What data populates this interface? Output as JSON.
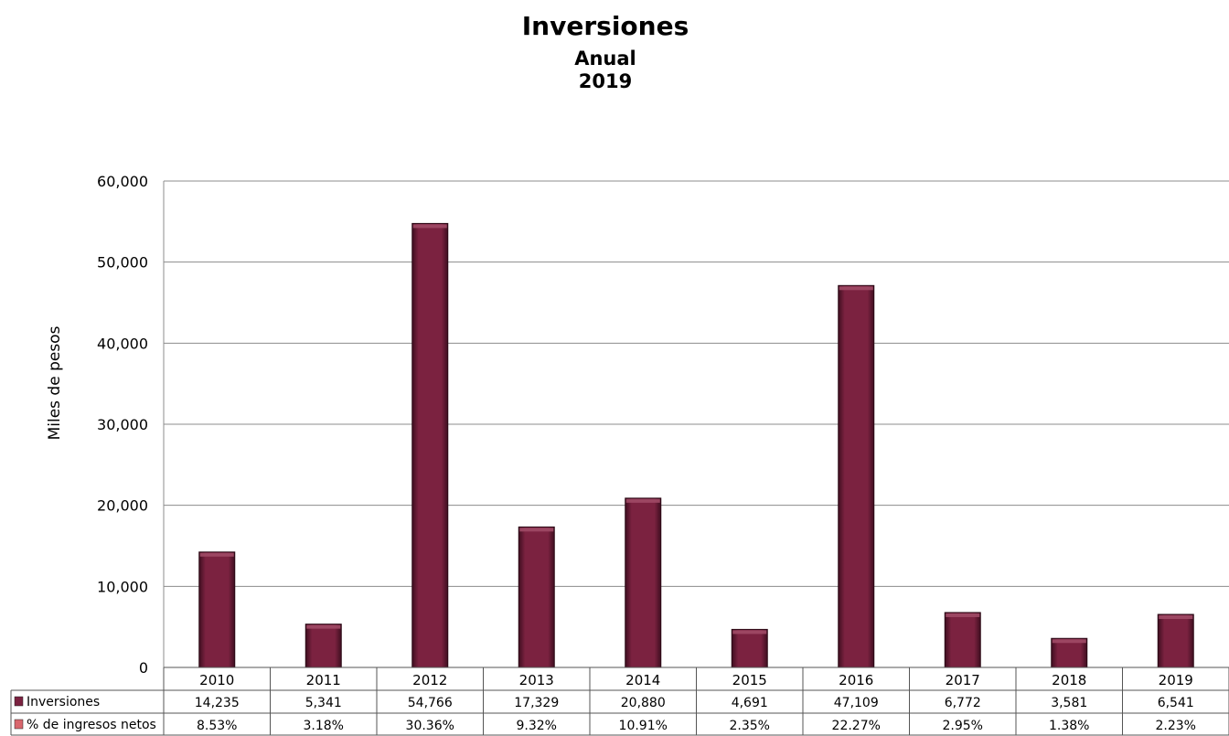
{
  "chart_data": {
    "type": "bar",
    "title": "Inversiones",
    "subtitle": "Anual",
    "subtitle2": "2019",
    "xlabel": "",
    "ylabel": "Miles de pesos",
    "ylim": [
      0,
      60000
    ],
    "yticks": [
      0,
      10000,
      20000,
      30000,
      40000,
      50000,
      60000
    ],
    "ytick_labels": [
      "0",
      "10,000",
      "20,000",
      "30,000",
      "40,000",
      "50,000",
      "60,000"
    ],
    "grid": true,
    "legend": "data-table-left",
    "categories": [
      "2010",
      "2011",
      "2012",
      "2013",
      "2014",
      "2015",
      "2016",
      "2017",
      "2018",
      "2019"
    ],
    "series": [
      {
        "name": "Inversiones",
        "color": "#7B2240",
        "values": [
          14235,
          5341,
          54766,
          17329,
          20880,
          4691,
          47109,
          6772,
          3581,
          6541
        ],
        "labels": [
          "14,235",
          "5,341",
          "54,766",
          "17,329",
          "20,880",
          "4,691",
          "47,109",
          "6,772",
          "3,581",
          "6,541"
        ]
      },
      {
        "name": "% de ingresos netos",
        "color": "#D9676E",
        "values": [
          8.53,
          3.18,
          30.36,
          9.32,
          10.91,
          2.35,
          22.27,
          2.95,
          1.38,
          2.23
        ],
        "labels": [
          "8.53%",
          "3.18%",
          "30.36%",
          "9.32%",
          "10.91%",
          "2.35%",
          "22.27%",
          "2.95%",
          "1.38%",
          "2.23%"
        ]
      }
    ]
  }
}
